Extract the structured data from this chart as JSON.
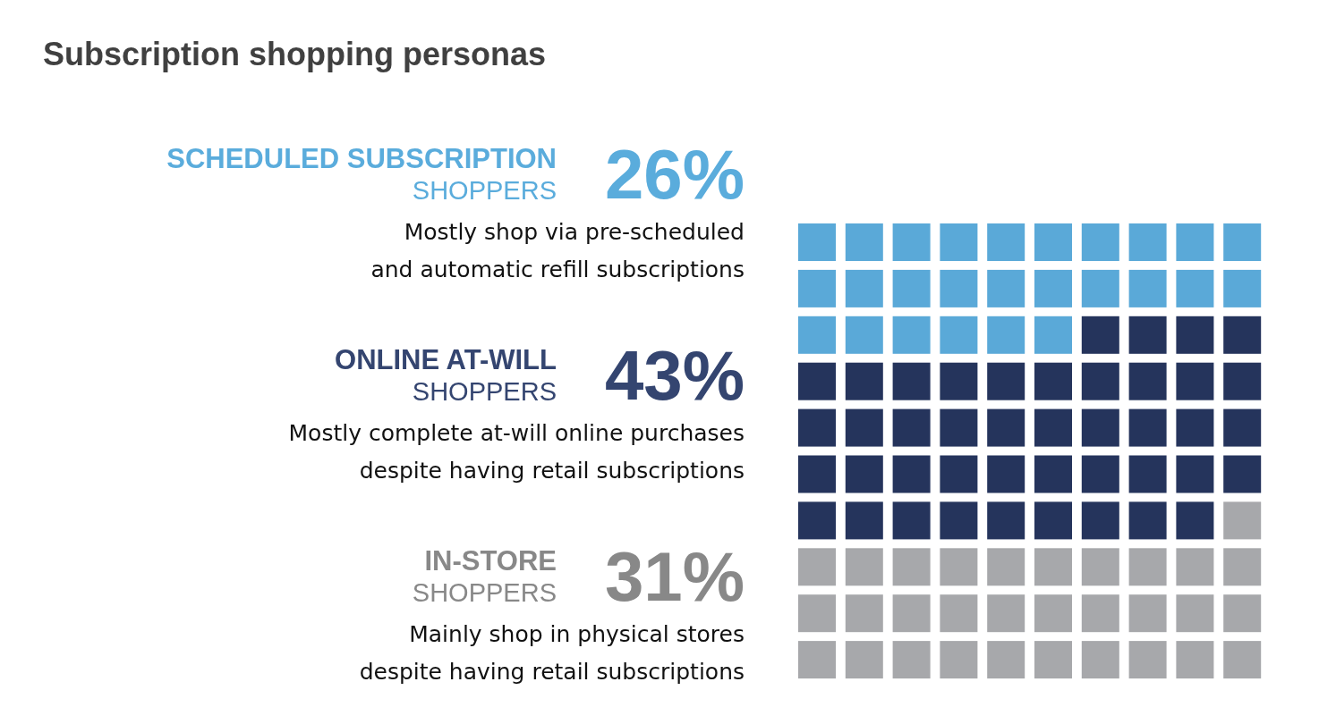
{
  "chart_data": {
    "type": "other",
    "title": "Subscription shopping personas",
    "categories": [
      "SCHEDULED SUBSCRIPTION\nSHOPPERS",
      "ONLINE AT-WILL\nSHOPPERS",
      "IN-STORE\nSHOPPERS"
    ],
    "values": [
      26,
      43,
      31
    ],
    "value_labels": [
      "26%",
      "43%",
      "31%"
    ],
    "colors": [
      "#5aa9d8",
      "#25345c",
      "#a7a8ab"
    ],
    "annotations": [
      "Mostly shop via pre-scheduled\nand automatic refill subscriptions",
      "Mostly complete at-will online purchases\ndespite having retail subscriptions",
      "Mainly shop in physical stores\ndespite having retail subscriptions"
    ]
  }
}
